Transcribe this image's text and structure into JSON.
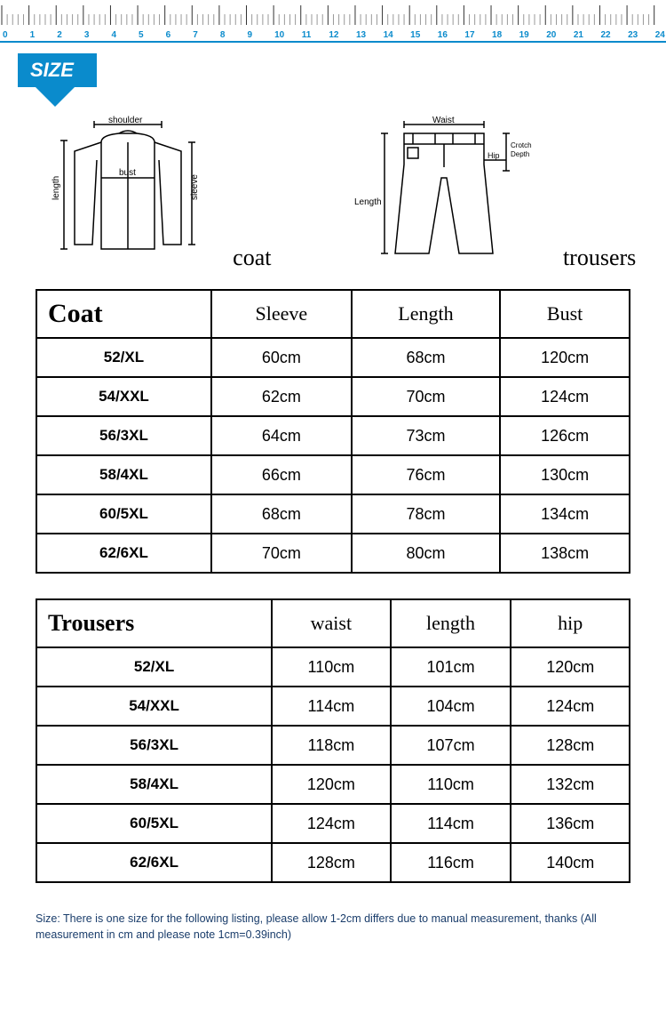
{
  "ruler": {
    "max": 24,
    "tick_color": "#888888",
    "number_color": "#0a8bcc",
    "border_color": "#0a8bcc"
  },
  "size_tab": {
    "label": "SIZE",
    "bg_color": "#0a8bcc",
    "text_color": "#ffffff"
  },
  "diagrams": {
    "coat": {
      "label": "coat",
      "annotations": [
        "shoulder",
        "bust",
        "length",
        "sleeve"
      ]
    },
    "trousers": {
      "label": "trousers",
      "annotations": [
        "Waist",
        "Hip",
        "Length",
        "Crotch Depth"
      ]
    }
  },
  "coat_table": {
    "title": "Coat",
    "columns": [
      "Sleeve",
      "Length",
      "Bust"
    ],
    "rows": [
      {
        "size": "52/XL",
        "values": [
          "60cm",
          "68cm",
          "120cm"
        ]
      },
      {
        "size": "54/XXL",
        "values": [
          "62cm",
          "70cm",
          "124cm"
        ]
      },
      {
        "size": "56/3XL",
        "values": [
          "64cm",
          "73cm",
          "126cm"
        ]
      },
      {
        "size": "58/4XL",
        "values": [
          "66cm",
          "76cm",
          "130cm"
        ]
      },
      {
        "size": "60/5XL",
        "values": [
          "68cm",
          "78cm",
          "134cm"
        ]
      },
      {
        "size": "62/6XL",
        "values": [
          "70cm",
          "80cm",
          "138cm"
        ]
      }
    ]
  },
  "trousers_table": {
    "title": "Trousers",
    "columns": [
      "waist",
      "length",
      "hip"
    ],
    "rows": [
      {
        "size": "52/XL",
        "values": [
          "110cm",
          "101cm",
          "120cm"
        ]
      },
      {
        "size": "54/XXL",
        "values": [
          "114cm",
          "104cm",
          "124cm"
        ]
      },
      {
        "size": "56/3XL",
        "values": [
          "118cm",
          "107cm",
          "128cm"
        ]
      },
      {
        "size": "58/4XL",
        "values": [
          "120cm",
          "110cm",
          "132cm"
        ]
      },
      {
        "size": "60/5XL",
        "values": [
          "124cm",
          "114cm",
          "136cm"
        ]
      },
      {
        "size": "62/6XL",
        "values": [
          "128cm",
          "116cm",
          "140cm"
        ]
      }
    ]
  },
  "footnote": "Size: There is one size for the following listing, please allow 1-2cm differs due to manual measurement, thanks (All measurement in cm and please note 1cm=0.39inch)",
  "style": {
    "table_border_color": "#000000",
    "title_font": "Georgia",
    "body_font": "Arial",
    "footnote_color": "#1a3d6b"
  }
}
